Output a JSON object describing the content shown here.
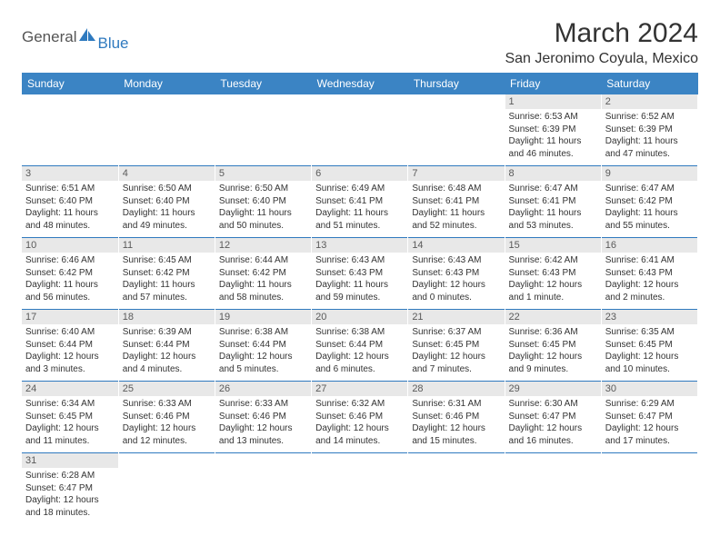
{
  "logo": {
    "text1": "General",
    "text2": "Blue",
    "color1": "#555555",
    "color2": "#2f7abf"
  },
  "title": "March 2024",
  "location": "San Jeronimo Coyula, Mexico",
  "header_bg": "#3b84c4",
  "border_color": "#2f7abf",
  "daynum_bg": "#e8e8e8",
  "days": [
    "Sunday",
    "Monday",
    "Tuesday",
    "Wednesday",
    "Thursday",
    "Friday",
    "Saturday"
  ],
  "weeks": [
    [
      null,
      null,
      null,
      null,
      null,
      {
        "n": "1",
        "sr": "6:53 AM",
        "ss": "6:39 PM",
        "dl": "11 hours and 46 minutes."
      },
      {
        "n": "2",
        "sr": "6:52 AM",
        "ss": "6:39 PM",
        "dl": "11 hours and 47 minutes."
      }
    ],
    [
      {
        "n": "3",
        "sr": "6:51 AM",
        "ss": "6:40 PM",
        "dl": "11 hours and 48 minutes."
      },
      {
        "n": "4",
        "sr": "6:50 AM",
        "ss": "6:40 PM",
        "dl": "11 hours and 49 minutes."
      },
      {
        "n": "5",
        "sr": "6:50 AM",
        "ss": "6:40 PM",
        "dl": "11 hours and 50 minutes."
      },
      {
        "n": "6",
        "sr": "6:49 AM",
        "ss": "6:41 PM",
        "dl": "11 hours and 51 minutes."
      },
      {
        "n": "7",
        "sr": "6:48 AM",
        "ss": "6:41 PM",
        "dl": "11 hours and 52 minutes."
      },
      {
        "n": "8",
        "sr": "6:47 AM",
        "ss": "6:41 PM",
        "dl": "11 hours and 53 minutes."
      },
      {
        "n": "9",
        "sr": "6:47 AM",
        "ss": "6:42 PM",
        "dl": "11 hours and 55 minutes."
      }
    ],
    [
      {
        "n": "10",
        "sr": "6:46 AM",
        "ss": "6:42 PM",
        "dl": "11 hours and 56 minutes."
      },
      {
        "n": "11",
        "sr": "6:45 AM",
        "ss": "6:42 PM",
        "dl": "11 hours and 57 minutes."
      },
      {
        "n": "12",
        "sr": "6:44 AM",
        "ss": "6:42 PM",
        "dl": "11 hours and 58 minutes."
      },
      {
        "n": "13",
        "sr": "6:43 AM",
        "ss": "6:43 PM",
        "dl": "11 hours and 59 minutes."
      },
      {
        "n": "14",
        "sr": "6:43 AM",
        "ss": "6:43 PM",
        "dl": "12 hours and 0 minutes."
      },
      {
        "n": "15",
        "sr": "6:42 AM",
        "ss": "6:43 PM",
        "dl": "12 hours and 1 minute."
      },
      {
        "n": "16",
        "sr": "6:41 AM",
        "ss": "6:43 PM",
        "dl": "12 hours and 2 minutes."
      }
    ],
    [
      {
        "n": "17",
        "sr": "6:40 AM",
        "ss": "6:44 PM",
        "dl": "12 hours and 3 minutes."
      },
      {
        "n": "18",
        "sr": "6:39 AM",
        "ss": "6:44 PM",
        "dl": "12 hours and 4 minutes."
      },
      {
        "n": "19",
        "sr": "6:38 AM",
        "ss": "6:44 PM",
        "dl": "12 hours and 5 minutes."
      },
      {
        "n": "20",
        "sr": "6:38 AM",
        "ss": "6:44 PM",
        "dl": "12 hours and 6 minutes."
      },
      {
        "n": "21",
        "sr": "6:37 AM",
        "ss": "6:45 PM",
        "dl": "12 hours and 7 minutes."
      },
      {
        "n": "22",
        "sr": "6:36 AM",
        "ss": "6:45 PM",
        "dl": "12 hours and 9 minutes."
      },
      {
        "n": "23",
        "sr": "6:35 AM",
        "ss": "6:45 PM",
        "dl": "12 hours and 10 minutes."
      }
    ],
    [
      {
        "n": "24",
        "sr": "6:34 AM",
        "ss": "6:45 PM",
        "dl": "12 hours and 11 minutes."
      },
      {
        "n": "25",
        "sr": "6:33 AM",
        "ss": "6:46 PM",
        "dl": "12 hours and 12 minutes."
      },
      {
        "n": "26",
        "sr": "6:33 AM",
        "ss": "6:46 PM",
        "dl": "12 hours and 13 minutes."
      },
      {
        "n": "27",
        "sr": "6:32 AM",
        "ss": "6:46 PM",
        "dl": "12 hours and 14 minutes."
      },
      {
        "n": "28",
        "sr": "6:31 AM",
        "ss": "6:46 PM",
        "dl": "12 hours and 15 minutes."
      },
      {
        "n": "29",
        "sr": "6:30 AM",
        "ss": "6:47 PM",
        "dl": "12 hours and 16 minutes."
      },
      {
        "n": "30",
        "sr": "6:29 AM",
        "ss": "6:47 PM",
        "dl": "12 hours and 17 minutes."
      }
    ],
    [
      {
        "n": "31",
        "sr": "6:28 AM",
        "ss": "6:47 PM",
        "dl": "12 hours and 18 minutes."
      },
      null,
      null,
      null,
      null,
      null,
      null
    ]
  ],
  "labels": {
    "sunrise": "Sunrise:",
    "sunset": "Sunset:",
    "daylight": "Daylight:"
  }
}
